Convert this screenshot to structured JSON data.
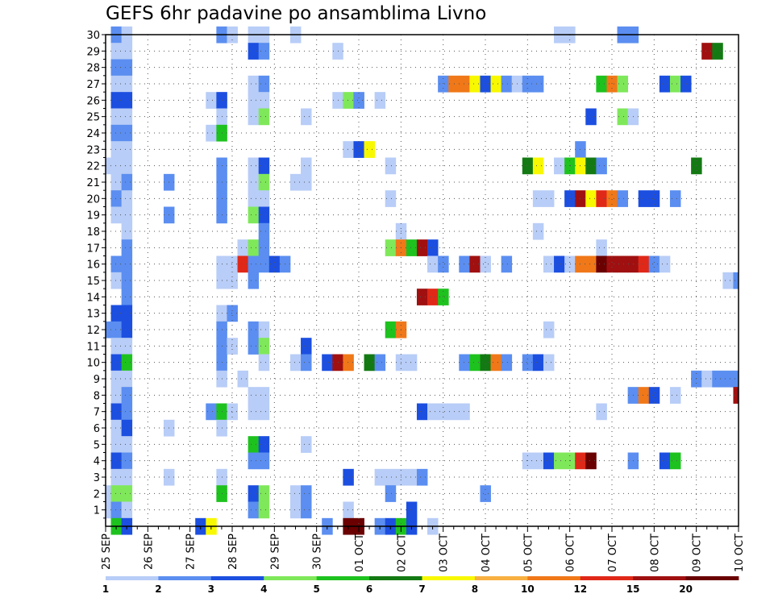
{
  "chart_data": {
    "type": "heatmap",
    "title": "GEFS 6hr padavine po ansamblima Livno",
    "xlabel": "",
    "ylabel": "",
    "x_tick_labels": [
      "25 SEP",
      "26 SEP",
      "27 SEP",
      "28 SEP",
      "29 SEP",
      "30 SEP",
      "01 OCT",
      "02 OCT",
      "03 OCT",
      "04 OCT",
      "05 OCT",
      "06 OCT",
      "07 OCT",
      "08 OCT",
      "09 OCT",
      "10 OCT"
    ],
    "y_ticks": [
      1,
      2,
      3,
      4,
      5,
      6,
      7,
      8,
      9,
      10,
      11,
      12,
      13,
      14,
      15,
      16,
      17,
      18,
      19,
      20,
      21,
      22,
      23,
      24,
      25,
      26,
      27,
      28,
      29,
      30
    ],
    "y_tick_labels": [
      "1",
      "2",
      "3",
      "4",
      "5",
      "6",
      "7",
      "8",
      "9",
      "10",
      "11",
      "12",
      "13",
      "14",
      "15",
      "16",
      "17",
      "18",
      "19",
      "20",
      "21",
      "22",
      "23",
      "24",
      "25",
      "26",
      "27",
      "28",
      "29",
      "30"
    ],
    "x_units": "days since 25 SEP (6-hourly steps)",
    "xlim": [
      0,
      15
    ],
    "ylim": [
      0,
      30
    ],
    "legend": {
      "placement": "bottom",
      "labels": [
        "1",
        "2",
        "3",
        "4",
        "5",
        "6",
        "7",
        "8",
        "10",
        "12",
        "15",
        "20"
      ],
      "colors": [
        "#b8cdf7",
        "#5b8ef0",
        "#1c4fe0",
        "#7fe85a",
        "#1ec21e",
        "#137a13",
        "#f8f800",
        "#f8b040",
        "#f07818",
        "#e02818",
        "#a01010",
        "#6a0000"
      ]
    },
    "cells_format": "[member, day_offset, level] ; level 1..12 maps to legend.colors index 0..11",
    "cells": [
      [
        30,
        0.25,
        2
      ],
      [
        30,
        0.5,
        1
      ],
      [
        30,
        2.75,
        2
      ],
      [
        30,
        3,
        1
      ],
      [
        30,
        3.5,
        1
      ],
      [
        30,
        3.75,
        1
      ],
      [
        30,
        4.5,
        1
      ],
      [
        30,
        10.75,
        1
      ],
      [
        30,
        11,
        1
      ],
      [
        30,
        12.25,
        2
      ],
      [
        30,
        12.5,
        2
      ],
      [
        29,
        0.25,
        1
      ],
      [
        29,
        0.5,
        1
      ],
      [
        29,
        3.5,
        3
      ],
      [
        29,
        3.75,
        2
      ],
      [
        29,
        5.5,
        1
      ],
      [
        29,
        14.25,
        11
      ],
      [
        29,
        14.5,
        6
      ],
      [
        28,
        0.25,
        2
      ],
      [
        28,
        0.5,
        2
      ],
      [
        27,
        0.25,
        1
      ],
      [
        27,
        0.5,
        1
      ],
      [
        27,
        3.5,
        1
      ],
      [
        27,
        3.75,
        2
      ],
      [
        27,
        8,
        2
      ],
      [
        27,
        8.25,
        9
      ],
      [
        27,
        8.5,
        9
      ],
      [
        27,
        8.75,
        7
      ],
      [
        27,
        9,
        3
      ],
      [
        27,
        9.25,
        7
      ],
      [
        27,
        9.5,
        2
      ],
      [
        27,
        9.75,
        1
      ],
      [
        27,
        10,
        2
      ],
      [
        27,
        10.25,
        2
      ],
      [
        27,
        11.75,
        5
      ],
      [
        27,
        12,
        9
      ],
      [
        27,
        12.25,
        4
      ],
      [
        27,
        13.25,
        3
      ],
      [
        27,
        13.5,
        4
      ],
      [
        27,
        13.75,
        3
      ],
      [
        26,
        0.25,
        3
      ],
      [
        26,
        0.5,
        3
      ],
      [
        26,
        2.5,
        1
      ],
      [
        26,
        2.75,
        3
      ],
      [
        26,
        3.5,
        1
      ],
      [
        26,
        3.75,
        1
      ],
      [
        26,
        5.5,
        1
      ],
      [
        26,
        5.75,
        4
      ],
      [
        26,
        6,
        2
      ],
      [
        26,
        6.5,
        1
      ],
      [
        25,
        0.25,
        1
      ],
      [
        25,
        0.5,
        1
      ],
      [
        25,
        2.75,
        1
      ],
      [
        25,
        3.5,
        1
      ],
      [
        25,
        3.75,
        4
      ],
      [
        25,
        4.75,
        1
      ],
      [
        25,
        11.5,
        3
      ],
      [
        25,
        12.25,
        4
      ],
      [
        25,
        12.5,
        1
      ],
      [
        24,
        0.25,
        2
      ],
      [
        24,
        0.5,
        2
      ],
      [
        24,
        2.5,
        1
      ],
      [
        24,
        2.75,
        5
      ],
      [
        23,
        0.25,
        1
      ],
      [
        23,
        0.5,
        1
      ],
      [
        23,
        5.75,
        1
      ],
      [
        23,
        6,
        3
      ],
      [
        23,
        6.25,
        7
      ],
      [
        23,
        11.25,
        2
      ],
      [
        22,
        0,
        1
      ],
      [
        22,
        0.25,
        1
      ],
      [
        22,
        0.5,
        1
      ],
      [
        22,
        2.75,
        2
      ],
      [
        22,
        3.5,
        1
      ],
      [
        22,
        3.75,
        3
      ],
      [
        22,
        4.75,
        1
      ],
      [
        22,
        6.75,
        1
      ],
      [
        22,
        10,
        6
      ],
      [
        22,
        10.25,
        7
      ],
      [
        22,
        10.75,
        1
      ],
      [
        22,
        11,
        5
      ],
      [
        22,
        11.25,
        7
      ],
      [
        22,
        11.5,
        6
      ],
      [
        22,
        11.75,
        2
      ],
      [
        22,
        14,
        6
      ],
      [
        21,
        0.25,
        1
      ],
      [
        21,
        0.5,
        2
      ],
      [
        21,
        1.5,
        2
      ],
      [
        21,
        2.75,
        2
      ],
      [
        21,
        3.5,
        1
      ],
      [
        21,
        3.75,
        4
      ],
      [
        21,
        4.5,
        1
      ],
      [
        21,
        4.75,
        1
      ],
      [
        20,
        0.25,
        2
      ],
      [
        20,
        0.5,
        1
      ],
      [
        20,
        2.75,
        2
      ],
      [
        20,
        3.5,
        1
      ],
      [
        20,
        3.75,
        1
      ],
      [
        20,
        6.75,
        1
      ],
      [
        20,
        10.25,
        1
      ],
      [
        20,
        10.5,
        1
      ],
      [
        20,
        11,
        3
      ],
      [
        20,
        11.25,
        11
      ],
      [
        20,
        11.5,
        7
      ],
      [
        20,
        11.75,
        10
      ],
      [
        20,
        12,
        9
      ],
      [
        20,
        12.25,
        2
      ],
      [
        20,
        12.75,
        3
      ],
      [
        20,
        13,
        3
      ],
      [
        20,
        13.5,
        2
      ],
      [
        19,
        0.25,
        1
      ],
      [
        19,
        0.5,
        1
      ],
      [
        19,
        1.5,
        2
      ],
      [
        19,
        2.75,
        2
      ],
      [
        19,
        3.5,
        4
      ],
      [
        19,
        3.75,
        3
      ],
      [
        18,
        0.5,
        1
      ],
      [
        18,
        3.75,
        2
      ],
      [
        18,
        7,
        1
      ],
      [
        18,
        10.25,
        1
      ],
      [
        17,
        0.5,
        2
      ],
      [
        17,
        3.25,
        1
      ],
      [
        17,
        3.5,
        4
      ],
      [
        17,
        3.75,
        2
      ],
      [
        17,
        6.75,
        4
      ],
      [
        17,
        7,
        9
      ],
      [
        17,
        7.25,
        5
      ],
      [
        17,
        7.5,
        11
      ],
      [
        17,
        7.75,
        3
      ],
      [
        17,
        11.75,
        1
      ],
      [
        16,
        0.25,
        2
      ],
      [
        16,
        0.5,
        2
      ],
      [
        16,
        2.75,
        1
      ],
      [
        16,
        3,
        1
      ],
      [
        16,
        3.25,
        10
      ],
      [
        16,
        3.5,
        2
      ],
      [
        16,
        3.75,
        2
      ],
      [
        16,
        4,
        3
      ],
      [
        16,
        4.25,
        2
      ],
      [
        16,
        7.75,
        1
      ],
      [
        16,
        8,
        2
      ],
      [
        16,
        8.5,
        2
      ],
      [
        16,
        8.75,
        11
      ],
      [
        16,
        9,
        1
      ],
      [
        16,
        9.5,
        2
      ],
      [
        16,
        10.5,
        1
      ],
      [
        16,
        10.75,
        3
      ],
      [
        16,
        11,
        1
      ],
      [
        16,
        11.25,
        9
      ],
      [
        16,
        11.5,
        9
      ],
      [
        16,
        11.75,
        12
      ],
      [
        16,
        12,
        11
      ],
      [
        16,
        12.25,
        11
      ],
      [
        16,
        12.5,
        11
      ],
      [
        16,
        12.75,
        10
      ],
      [
        16,
        13,
        2
      ],
      [
        16,
        13.25,
        1
      ],
      [
        15,
        0.25,
        1
      ],
      [
        15,
        0.5,
        2
      ],
      [
        15,
        2.75,
        1
      ],
      [
        15,
        3,
        1
      ],
      [
        15,
        3.5,
        2
      ],
      [
        15,
        14.75,
        1
      ],
      [
        15,
        15,
        2
      ],
      [
        14,
        0.5,
        2
      ],
      [
        14,
        7.5,
        11
      ],
      [
        14,
        7.75,
        10
      ],
      [
        14,
        8,
        5
      ],
      [
        13,
        0.25,
        3
      ],
      [
        13,
        0.5,
        3
      ],
      [
        13,
        2.75,
        1
      ],
      [
        13,
        3,
        2
      ],
      [
        12,
        0,
        2
      ],
      [
        12,
        0.25,
        2
      ],
      [
        12,
        0.5,
        3
      ],
      [
        12,
        2.75,
        2
      ],
      [
        12,
        3.5,
        2
      ],
      [
        12,
        3.75,
        1
      ],
      [
        12,
        6.75,
        5
      ],
      [
        12,
        7,
        9
      ],
      [
        12,
        10.5,
        1
      ],
      [
        11,
        0.25,
        1
      ],
      [
        11,
        0.5,
        1
      ],
      [
        11,
        2.75,
        2
      ],
      [
        11,
        3,
        1
      ],
      [
        11,
        3.5,
        2
      ],
      [
        11,
        3.75,
        4
      ],
      [
        11,
        4.75,
        3
      ],
      [
        10,
        0.25,
        3
      ],
      [
        10,
        0.5,
        5
      ],
      [
        10,
        2.75,
        2
      ],
      [
        10,
        3.75,
        1
      ],
      [
        10,
        4.5,
        1
      ],
      [
        10,
        4.75,
        2
      ],
      [
        10,
        5.25,
        3
      ],
      [
        10,
        5.5,
        11
      ],
      [
        10,
        5.75,
        9
      ],
      [
        10,
        6.25,
        6
      ],
      [
        10,
        6.5,
        2
      ],
      [
        10,
        7,
        1
      ],
      [
        10,
        7.25,
        1
      ],
      [
        10,
        8.5,
        2
      ],
      [
        10,
        8.75,
        5
      ],
      [
        10,
        9,
        6
      ],
      [
        10,
        9.25,
        9
      ],
      [
        10,
        9.5,
        2
      ],
      [
        10,
        10,
        2
      ],
      [
        10,
        10.25,
        3
      ],
      [
        10,
        10.5,
        1
      ],
      [
        9,
        0.25,
        1
      ],
      [
        9,
        0.5,
        1
      ],
      [
        9,
        2.75,
        1
      ],
      [
        9,
        3.25,
        1
      ],
      [
        9,
        14,
        2
      ],
      [
        9,
        14.25,
        1
      ],
      [
        9,
        14.5,
        2
      ],
      [
        9,
        14.75,
        2
      ],
      [
        9,
        15,
        2
      ],
      [
        8,
        0.25,
        1
      ],
      [
        8,
        0.5,
        2
      ],
      [
        8,
        3.5,
        1
      ],
      [
        8,
        3.75,
        1
      ],
      [
        8,
        12.5,
        2
      ],
      [
        8,
        12.75,
        9
      ],
      [
        8,
        13,
        3
      ],
      [
        8,
        13.5,
        1
      ],
      [
        8,
        15,
        11
      ],
      [
        7,
        0.25,
        3
      ],
      [
        7,
        0.5,
        2
      ],
      [
        7,
        2.5,
        2
      ],
      [
        7,
        2.75,
        5
      ],
      [
        7,
        3,
        1
      ],
      [
        7,
        3.5,
        1
      ],
      [
        7,
        3.75,
        1
      ],
      [
        7,
        7.5,
        3
      ],
      [
        7,
        7.75,
        1
      ],
      [
        7,
        8,
        1
      ],
      [
        7,
        8.25,
        1
      ],
      [
        7,
        8.5,
        1
      ],
      [
        7,
        11.75,
        1
      ],
      [
        6,
        0.25,
        1
      ],
      [
        6,
        0.5,
        3
      ],
      [
        6,
        1.5,
        1
      ],
      [
        6,
        2.75,
        1
      ],
      [
        5,
        0.25,
        1
      ],
      [
        5,
        0.5,
        1
      ],
      [
        5,
        3.5,
        5
      ],
      [
        5,
        3.75,
        3
      ],
      [
        5,
        4.75,
        1
      ],
      [
        4,
        0.25,
        3
      ],
      [
        4,
        0.5,
        2
      ],
      [
        4,
        3.5,
        2
      ],
      [
        4,
        3.75,
        2
      ],
      [
        4,
        10,
        1
      ],
      [
        4,
        10.25,
        1
      ],
      [
        4,
        10.5,
        3
      ],
      [
        4,
        10.75,
        4
      ],
      [
        4,
        11,
        4
      ],
      [
        4,
        11.25,
        10
      ],
      [
        4,
        11.5,
        12
      ],
      [
        4,
        12.5,
        2
      ],
      [
        4,
        13.25,
        3
      ],
      [
        4,
        13.5,
        5
      ],
      [
        3,
        0.25,
        1
      ],
      [
        3,
        0.5,
        1
      ],
      [
        3,
        1.5,
        1
      ],
      [
        3,
        2.75,
        1
      ],
      [
        3,
        5.75,
        3
      ],
      [
        3,
        6.5,
        1
      ],
      [
        3,
        6.75,
        1
      ],
      [
        3,
        7,
        1
      ],
      [
        3,
        7.25,
        1
      ],
      [
        3,
        7.5,
        2
      ],
      [
        2,
        0,
        1
      ],
      [
        2,
        0.25,
        4
      ],
      [
        2,
        0.5,
        4
      ],
      [
        2,
        2.75,
        5
      ],
      [
        2,
        3.5,
        3
      ],
      [
        2,
        3.75,
        4
      ],
      [
        2,
        4.5,
        1
      ],
      [
        2,
        4.75,
        2
      ],
      [
        2,
        6.75,
        2
      ],
      [
        2,
        9,
        2
      ],
      [
        1,
        0,
        1
      ],
      [
        1,
        0.25,
        2
      ],
      [
        1,
        0.5,
        1
      ],
      [
        1,
        3.5,
        2
      ],
      [
        1,
        3.75,
        4
      ],
      [
        1,
        4.5,
        1
      ],
      [
        1,
        4.75,
        2
      ],
      [
        1,
        5.75,
        1
      ],
      [
        1,
        7.25,
        3
      ],
      [
        0,
        0.25,
        5
      ],
      [
        0,
        0.5,
        3
      ],
      [
        0,
        2.25,
        3
      ],
      [
        0,
        2.5,
        7
      ],
      [
        0,
        5.25,
        2
      ],
      [
        0,
        5.75,
        12
      ],
      [
        0,
        6,
        12
      ],
      [
        0,
        6.5,
        2
      ],
      [
        0,
        6.75,
        3
      ],
      [
        0,
        7,
        5
      ],
      [
        0,
        7.25,
        3
      ],
      [
        0,
        7.75,
        1
      ]
    ]
  }
}
